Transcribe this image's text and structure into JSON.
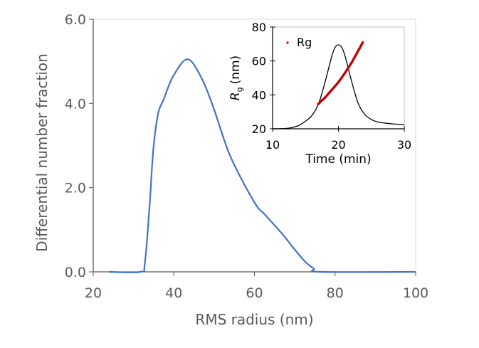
{
  "chart_data": [
    {
      "type": "line",
      "title": "",
      "xlabel": "RMS radius (nm)",
      "ylabel": "Differential number fraction",
      "xlim": [
        20,
        100
      ],
      "ylim": [
        0,
        6
      ],
      "xticks": [
        "20",
        "40",
        "60",
        "80",
        "100"
      ],
      "yticks": [
        "0.0",
        "2.0",
        "4.0",
        "6.0"
      ],
      "grid": false,
      "color": "#4472C4",
      "x": [
        24,
        31.7,
        32.8,
        34,
        34.9,
        36.1,
        37.5,
        39.8,
        43.4,
        46.9,
        49.9,
        54,
        60,
        62.8,
        67.1,
        69.4,
        72.4,
        74.7,
        76.5,
        100
      ],
      "y": [
        0,
        0,
        0.2,
        1.6,
        2.9,
        3.76,
        4.1,
        4.64,
        5.05,
        4.6,
        3.88,
        2.75,
        1.65,
        1.34,
        0.88,
        0.6,
        0.26,
        0.08,
        0,
        0
      ]
    },
    {
      "type": "scatter+line",
      "title": "",
      "xlabel": "Time (min)",
      "ylabel_main": "R",
      "ylabel_sub": "g",
      "ylabel_unit": "(nm)",
      "xlim": [
        10,
        30
      ],
      "ylim": [
        20,
        80
      ],
      "xticks": [
        "10",
        "20",
        "30"
      ],
      "yticks": [
        "20",
        "40",
        "60",
        "80"
      ],
      "grid": false,
      "legend": {
        "position": "top-left",
        "entries": [
          "Rg"
        ]
      },
      "series": [
        {
          "type": "line",
          "color": "#000000",
          "x": [
            10,
            12,
            13,
            14,
            15,
            16,
            17,
            18,
            19,
            19.5,
            20,
            20.5,
            21,
            22,
            23,
            24,
            25,
            26,
            28,
            30
          ],
          "y": [
            20,
            20.2,
            20.8,
            22,
            24.5,
            28,
            35,
            48,
            63,
            68,
            69.5,
            68,
            63,
            48,
            35,
            28.5,
            25.5,
            24,
            23,
            22.5
          ]
        },
        {
          "type": "scatter",
          "name": "Rg",
          "color": "#C00000",
          "x": [
            16.9,
            17.5,
            18,
            18.5,
            19,
            19.5,
            20,
            20.5,
            21,
            21.5,
            22,
            22.5,
            23,
            23.4,
            23.7
          ],
          "y": [
            34.5,
            36.8,
            38.5,
            40.8,
            43,
            45.2,
            47.5,
            50.2,
            53,
            56,
            59,
            62.5,
            66,
            68.8,
            71
          ]
        }
      ]
    }
  ]
}
